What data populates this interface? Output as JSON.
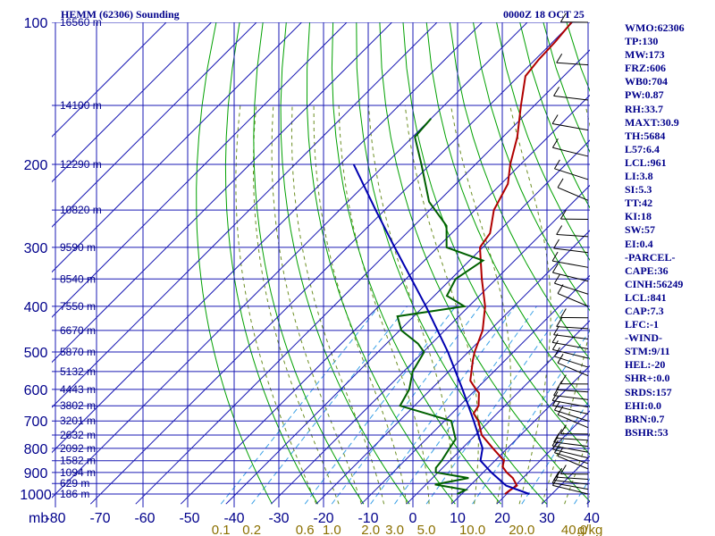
{
  "header": {
    "title": "HEMM (62306) Sounding",
    "timestamp": "0000Z 18 OCT 25"
  },
  "stats": [
    "WMO:62306",
    "TP:130",
    "MW:173",
    "FRZ:606",
    "WB0:704",
    "PW:0.87",
    "RH:33.7",
    "MAXT:30.9",
    "TH:5684",
    "L57:6.4",
    "LCL:961",
    "LI:3.8",
    "SI:5.3",
    "TT:42",
    "KI:18",
    "SW:57",
    "EI:0.4",
    "-PARCEL-",
    "CAPE:36",
    "CINH:56249",
    "LCL:841",
    "CAP:7.3",
    "LFC:-1",
    "-WIND-",
    "STM:9/11",
    "HEL:-20",
    "SHR+:0.0",
    "SRDS:157",
    "EHI:0.0",
    "BRN:0.7",
    "BSHR:53"
  ],
  "colors": {
    "grid": "#1a1ab4",
    "label": "#00008b",
    "temperature": "#b00000",
    "dewpoint": "#006000",
    "parcel": "#0000b0",
    "dry_adiabat": "#00a000",
    "moist_adiabat": "#6b8e23",
    "mixing_ratio": "#3aa0e6",
    "mixing_label": "#8b7000"
  },
  "chart_data": {
    "type": "line",
    "title": "HEMM (62306) Sounding",
    "y_unit_label": "mb",
    "x_unit_label": "g/kg",
    "pressure_ticks": [
      100,
      200,
      300,
      400,
      500,
      600,
      700,
      800,
      900,
      1000
    ],
    "temperature_ticks": [
      -80,
      -70,
      -60,
      -50,
      -40,
      -30,
      -20,
      -10,
      0,
      10,
      20,
      30,
      40
    ],
    "mixing_ratio_ticks": [
      "0.1",
      "0.2",
      "0.6",
      "1.0",
      "2.0",
      "3.0",
      "5.0",
      "10.0",
      "20.0",
      "40.0"
    ],
    "height_labels": [
      {
        "p": 100,
        "text": "16560 m"
      },
      {
        "p": 150,
        "text": "14100 m"
      },
      {
        "p": 200,
        "text": "12290 m"
      },
      {
        "p": 250,
        "text": "10820 m"
      },
      {
        "p": 300,
        "text": "9590 m"
      },
      {
        "p": 350,
        "text": "8540 m"
      },
      {
        "p": 400,
        "text": "7550 m"
      },
      {
        "p": 450,
        "text": "6670 m"
      },
      {
        "p": 500,
        "text": "5870 m"
      },
      {
        "p": 550,
        "text": "5132 m"
      },
      {
        "p": 600,
        "text": "4443 m"
      },
      {
        "p": 650,
        "text": "3802 m"
      },
      {
        "p": 700,
        "text": "3201 m"
      },
      {
        "p": 750,
        "text": "2632 m"
      },
      {
        "p": 800,
        "text": "2092 m"
      },
      {
        "p": 850,
        "text": "1582 m"
      },
      {
        "p": 900,
        "text": "1094 m"
      },
      {
        "p": 950,
        "text": "629 m"
      },
      {
        "p": 1000,
        "text": "186 m"
      }
    ],
    "series": [
      {
        "name": "temperature",
        "points": [
          [
            1000,
            19.6
          ],
          [
            985,
            19.8
          ],
          [
            960,
            20.4
          ],
          [
            925,
            17.8
          ],
          [
            900,
            15.2
          ],
          [
            875,
            13.0
          ],
          [
            850,
            12.0
          ],
          [
            800,
            6.8
          ],
          [
            750,
            1.4
          ],
          [
            700,
            -2.5
          ],
          [
            675,
            -5.2
          ],
          [
            650,
            -5.8
          ],
          [
            610,
            -8.6
          ],
          [
            600,
            -10.0
          ],
          [
            575,
            -13.2
          ],
          [
            520,
            -17.2
          ],
          [
            500,
            -18.6
          ],
          [
            450,
            -21.6
          ],
          [
            400,
            -26.4
          ],
          [
            350,
            -33.2
          ],
          [
            300,
            -40.6
          ],
          [
            280,
            -41.5
          ],
          [
            250,
            -45.8
          ],
          [
            220,
            -48.5
          ],
          [
            200,
            -52.3
          ],
          [
            175,
            -56.8
          ],
          [
            150,
            -63.0
          ],
          [
            130,
            -68.5
          ],
          [
            120,
            -69.2
          ],
          [
            110,
            -69.5
          ],
          [
            100,
            -70.2
          ]
        ]
      },
      {
        "name": "dewpoint",
        "points": [
          [
            1000,
            9.0
          ],
          [
            980,
            10.0
          ],
          [
            975,
            8.4
          ],
          [
            955,
            2.0
          ],
          [
            925,
            8.0
          ],
          [
            900,
            -0.5
          ],
          [
            880,
            -1.5
          ],
          [
            850,
            -1.8
          ],
          [
            800,
            -2.8
          ],
          [
            765,
            -3.5
          ],
          [
            700,
            -8.5
          ],
          [
            650,
            -23.2
          ],
          [
            600,
            -24.8
          ],
          [
            550,
            -28.0
          ],
          [
            510,
            -29.4
          ],
          [
            500,
            -29.8
          ],
          [
            480,
            -33.0
          ],
          [
            450,
            -39.6
          ],
          [
            420,
            -43.6
          ],
          [
            400,
            -31.0
          ],
          [
            380,
            -37.2
          ],
          [
            350,
            -39.0
          ],
          [
            320,
            -37.0
          ],
          [
            300,
            -48.0
          ],
          [
            270,
            -52.8
          ],
          [
            240,
            -62.0
          ],
          [
            200,
            -72.0
          ],
          [
            175,
            -79.5
          ],
          [
            160,
            -80.0
          ]
        ]
      },
      {
        "name": "parcel",
        "points": [
          [
            1000,
            25.0
          ],
          [
            960,
            18.0
          ],
          [
            900,
            11.8
          ],
          [
            850,
            6.8
          ],
          [
            800,
            4.5
          ],
          [
            700,
            -3.5
          ],
          [
            600,
            -13.0
          ],
          [
            500,
            -24.5
          ],
          [
            400,
            -39.5
          ],
          [
            300,
            -59.5
          ],
          [
            250,
            -72.0
          ],
          [
            200,
            -87.0
          ]
        ]
      }
    ],
    "wind_levels_count": 40
  }
}
